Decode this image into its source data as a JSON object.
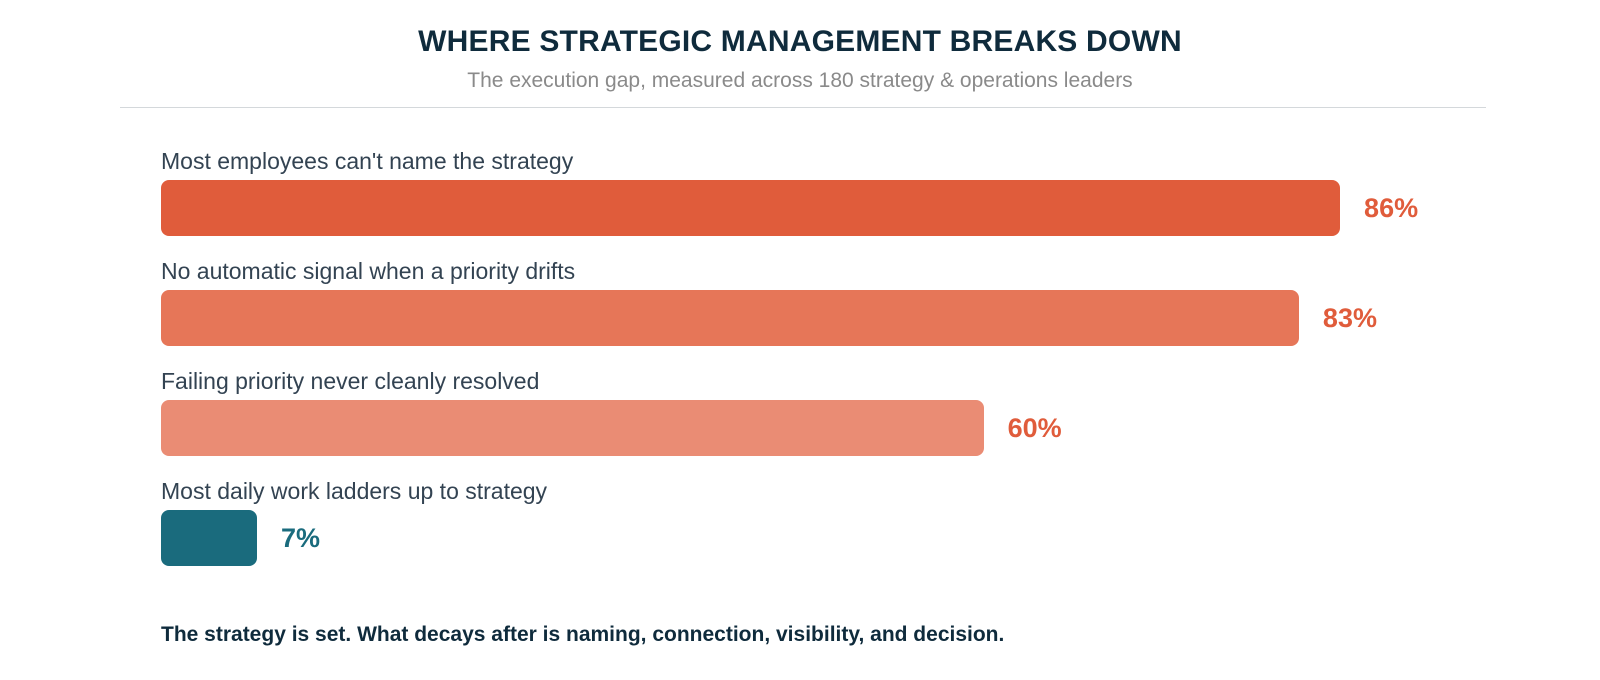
{
  "header": {
    "title": "WHERE STRATEGIC MANAGEMENT BREAKS DOWN",
    "subtitle": "The execution gap, measured across 180 strategy & operations leaders"
  },
  "footer": {
    "note": "The strategy is set. What decays after is naming, connection, visibility, and decision."
  },
  "chart_data": {
    "type": "bar",
    "orientation": "horizontal",
    "title": "WHERE STRATEGIC MANAGEMENT BREAKS DOWN",
    "subtitle": "The execution gap, measured across 180 strategy & operations leaders",
    "categories": [
      "Most employees can't name the strategy",
      "No automatic signal when a priority drifts",
      "Failing priority never cleanly resolved",
      "Most daily work ladders up to strategy"
    ],
    "values": [
      86,
      83,
      60,
      7
    ],
    "value_labels": [
      "86%",
      "83%",
      "60%",
      "7%"
    ],
    "unit": "%",
    "xlim": [
      0,
      100
    ],
    "grid": false,
    "legend": "none",
    "colors": [
      "#e05c3b",
      "#e67658",
      "#ea8c74",
      "#1a6b7d"
    ],
    "label_colors": [
      "#e05c3b",
      "#e05c3b",
      "#e05c3b",
      "#1a6b7d"
    ]
  }
}
